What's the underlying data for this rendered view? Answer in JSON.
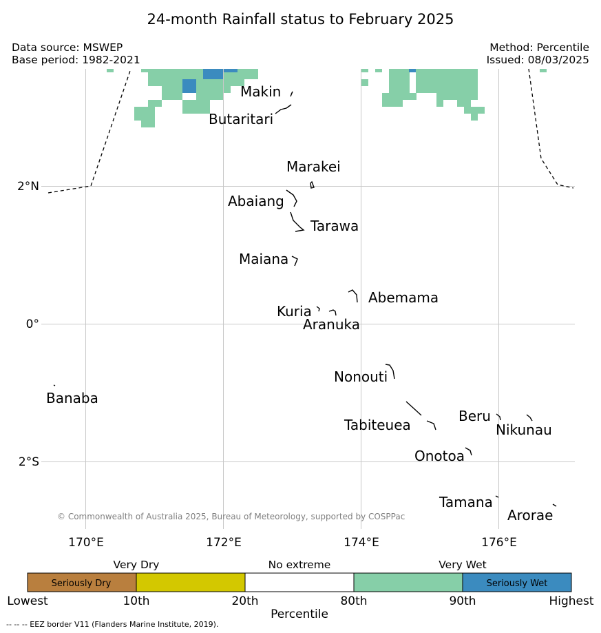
{
  "header": {
    "title": "24-month Rainfall status to February 2025",
    "data_source": "Data source: MSWEP",
    "base_period": "Base period: 1982-2021",
    "method": "Method: Percentile",
    "issued": "Issued: 08/03/2025"
  },
  "map": {
    "lat_labels": [
      "2°N",
      "0°",
      "2°S"
    ],
    "lon_labels": [
      "170°E",
      "172°E",
      "174°E",
      "176°E"
    ],
    "islands": {
      "makin": "Makin",
      "butaritari": "Butaritari",
      "marakei": "Marakei",
      "abaiang": "Abaiang",
      "tarawa": "Tarawa",
      "maiana": "Maiana",
      "abemama": "Abemama",
      "kuria": "Kuria",
      "aranuka": "Aranuka",
      "nonouti": "Nonouti",
      "banaba": "Banaba",
      "tabiteuea": "Tabiteuea",
      "beru": "Beru",
      "nikunau": "Nikunau",
      "onotoa": "Onotoa",
      "tamana": "Tamana",
      "arorae": "Arorae"
    },
    "credit": "© Commonwealth of Australia 2025, Bureau of Meteorology, supported by COSPPac",
    "colors": {
      "very_wet": "#86cfa8",
      "seriously_wet": "#3b8bbf"
    }
  },
  "colorbar": {
    "categories": {
      "very_dry": "Very Dry",
      "no_extreme": "No extreme",
      "very_wet": "Very Wet"
    },
    "inner_labels": {
      "seriously_dry": "Seriously Dry",
      "seriously_wet": "Seriously Wet"
    },
    "ticks": [
      "Lowest",
      "10th",
      "20th",
      "80th",
      "90th",
      "Highest"
    ],
    "axis_label": "Percentile",
    "segment_colors": [
      "#b97f3e",
      "#d3c800",
      "#ffffff",
      "#86cfa8",
      "#3b8bbf"
    ]
  },
  "footer": {
    "eez_note": "--  --  -- EEZ border V11 (Flanders Marine Institute, 2019)."
  }
}
